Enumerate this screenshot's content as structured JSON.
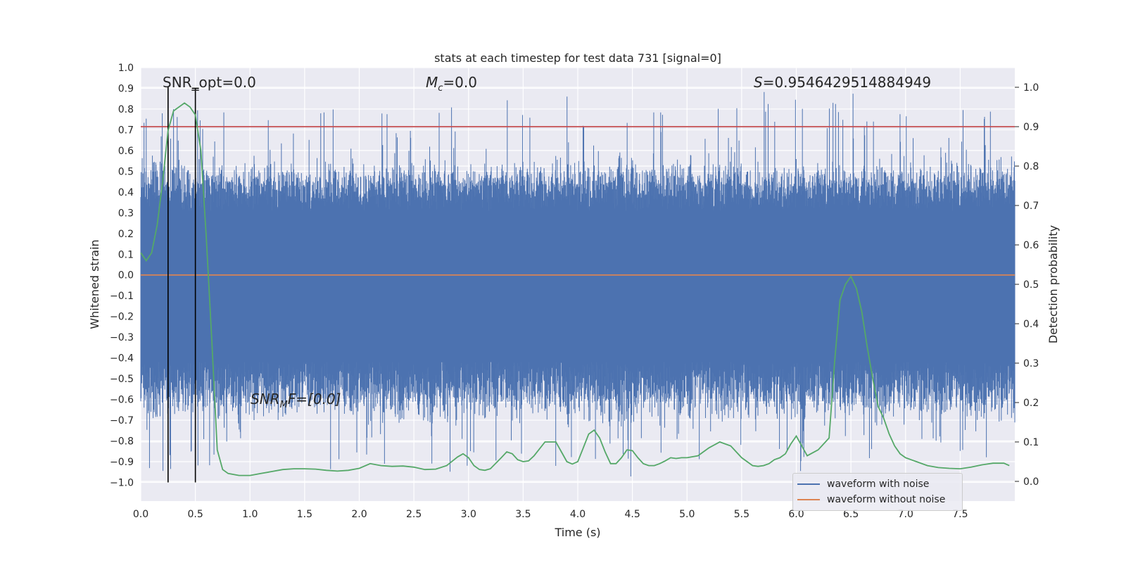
{
  "chart_data": {
    "type": "line",
    "title": "stats at each timestep for test data 731 [signal=0]",
    "xlabel": "Time (s)",
    "ylabel_left": "Whitened strain",
    "ylabel_right": "Detection probability",
    "xlim": [
      0.0,
      8.0
    ],
    "ylim_left": [
      -1.09,
      1.0
    ],
    "ylim_right": [
      -0.05,
      1.05
    ],
    "xticks": [
      "0.0",
      "0.5",
      "1.0",
      "1.5",
      "2.0",
      "2.5",
      "3.0",
      "3.5",
      "4.0",
      "4.5",
      "5.0",
      "5.5",
      "6.0",
      "6.5",
      "7.0",
      "7.5"
    ],
    "yticks_left": [
      "1.0",
      "0.9",
      "0.8",
      "0.7",
      "0.6",
      "0.5",
      "0.4",
      "0.3",
      "0.2",
      "0.1",
      "0.0",
      "−0.1",
      "−0.2",
      "−0.3",
      "−0.4",
      "−0.5",
      "−0.6",
      "−0.7",
      "−0.8",
      "−0.9",
      "−1.0"
    ],
    "yticks_right": [
      "1.0",
      "0.9",
      "0.8",
      "0.7",
      "0.6",
      "0.5",
      "0.4",
      "0.3",
      "0.2",
      "0.1",
      "0.0"
    ],
    "grid": true,
    "annotations": {
      "snr_opt": "SNR_opt=0.0",
      "mc_symbol": "M",
      "mc_sub": "c",
      "mc_value": "=0.0",
      "s_symbol": "S",
      "s_value": "=0.9546429514884949",
      "snr_mf_symbol": "SNR",
      "snr_mf_sub": "M",
      "snr_mf_rest": "F=[0.0]"
    },
    "vertical_markers_s": [
      0.25,
      0.5
    ],
    "threshold_probability": 0.9,
    "series": [
      {
        "name": "waveform with noise",
        "color": "#4c72b0",
        "axis": "left",
        "envelope_description_only_in_script": true
      },
      {
        "name": "waveform without noise",
        "color": "#dd8452",
        "axis": "left",
        "x": [
          0.0,
          8.0
        ],
        "y": [
          0.0,
          0.0
        ]
      },
      {
        "name": "",
        "color": "#55a868",
        "axis": "right",
        "x": [
          0.0,
          0.05,
          0.1,
          0.15,
          0.2,
          0.25,
          0.3,
          0.35,
          0.4,
          0.45,
          0.5,
          0.55,
          0.6,
          0.65,
          0.7,
          0.75,
          0.8,
          0.9,
          1.0,
          1.1,
          1.2,
          1.3,
          1.4,
          1.5,
          1.6,
          1.7,
          1.8,
          1.9,
          2.0,
          2.1,
          2.2,
          2.3,
          2.4,
          2.5,
          2.6,
          2.7,
          2.8,
          2.9,
          2.95,
          3.0,
          3.05,
          3.1,
          3.15,
          3.2,
          3.3,
          3.35,
          3.4,
          3.45,
          3.5,
          3.55,
          3.6,
          3.7,
          3.8,
          3.85,
          3.9,
          3.95,
          4.0,
          4.05,
          4.1,
          4.15,
          4.2,
          4.25,
          4.3,
          4.35,
          4.4,
          4.45,
          4.5,
          4.55,
          4.6,
          4.65,
          4.7,
          4.75,
          4.8,
          4.85,
          4.9,
          4.95,
          5.0,
          5.1,
          5.2,
          5.3,
          5.4,
          5.5,
          5.6,
          5.65,
          5.7,
          5.75,
          5.8,
          5.85,
          5.9,
          5.95,
          6.0,
          6.1,
          6.2,
          6.3,
          6.35,
          6.4,
          6.45,
          6.5,
          6.55,
          6.6,
          6.65,
          6.7,
          6.75,
          6.8,
          6.85,
          6.9,
          6.95,
          7.0,
          7.05,
          7.1,
          7.2,
          7.3,
          7.4,
          7.5,
          7.6,
          7.7,
          7.8,
          7.9,
          7.95
        ],
        "y": [
          0.58,
          0.56,
          0.58,
          0.65,
          0.76,
          0.89,
          0.94,
          0.95,
          0.96,
          0.95,
          0.93,
          0.84,
          0.62,
          0.36,
          0.08,
          0.03,
          0.02,
          0.015,
          0.015,
          0.02,
          0.025,
          0.03,
          0.032,
          0.032,
          0.031,
          0.028,
          0.026,
          0.028,
          0.033,
          0.045,
          0.04,
          0.038,
          0.039,
          0.036,
          0.03,
          0.031,
          0.04,
          0.062,
          0.07,
          0.06,
          0.04,
          0.03,
          0.028,
          0.032,
          0.06,
          0.075,
          0.07,
          0.055,
          0.05,
          0.052,
          0.065,
          0.1,
          0.1,
          0.075,
          0.05,
          0.044,
          0.05,
          0.085,
          0.12,
          0.13,
          0.11,
          0.075,
          0.045,
          0.045,
          0.06,
          0.08,
          0.078,
          0.06,
          0.045,
          0.04,
          0.04,
          0.045,
          0.052,
          0.06,
          0.058,
          0.06,
          0.06,
          0.065,
          0.085,
          0.1,
          0.09,
          0.06,
          0.04,
          0.038,
          0.04,
          0.045,
          0.055,
          0.06,
          0.07,
          0.095,
          0.115,
          0.065,
          0.08,
          0.11,
          0.3,
          0.46,
          0.5,
          0.52,
          0.49,
          0.43,
          0.34,
          0.26,
          0.19,
          0.16,
          0.12,
          0.09,
          0.07,
          0.06,
          0.055,
          0.05,
          0.04,
          0.035,
          0.033,
          0.032,
          0.036,
          0.042,
          0.046,
          0.046,
          0.04
        ]
      }
    ]
  },
  "legend": {
    "items": [
      {
        "label": "waveform with noise",
        "color": "#4c72b0"
      },
      {
        "label": "waveform without noise",
        "color": "#dd8452"
      }
    ]
  }
}
